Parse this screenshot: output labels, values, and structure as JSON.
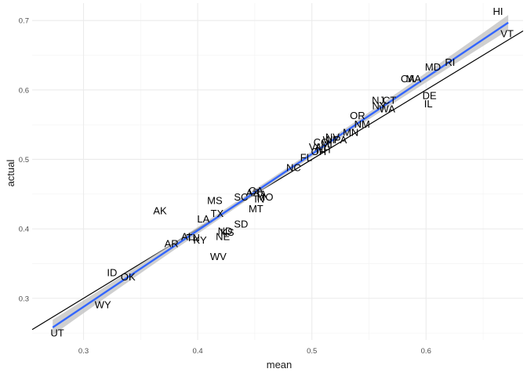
{
  "chart_data": {
    "type": "scatter",
    "title": "",
    "xlabel": "mean",
    "ylabel": "actual",
    "xlim": [
      0.255,
      0.685
    ],
    "ylim": [
      0.24,
      0.725
    ],
    "x_ticks": [
      {
        "value": 0.3,
        "label": "0.3"
      },
      {
        "value": 0.4,
        "label": "0.4"
      },
      {
        "value": 0.5,
        "label": "0.5"
      },
      {
        "value": 0.6,
        "label": "0.6"
      }
    ],
    "y_ticks": [
      {
        "value": 0.3,
        "label": "0.3"
      },
      {
        "value": 0.4,
        "label": "0.4"
      },
      {
        "value": 0.5,
        "label": "0.5"
      },
      {
        "value": 0.6,
        "label": "0.6"
      },
      {
        "value": 0.7,
        "label": "0.7"
      }
    ],
    "grid": true,
    "reference_line": {
      "type": "identity",
      "color": "#000000"
    },
    "fit_line": {
      "type": "linear",
      "color": "#3366FF",
      "band_color": "#bfbfbf",
      "start": [
        0.273,
        0.258
      ],
      "end": [
        0.672,
        0.697
      ],
      "band_halfwidth_ends": 0.011,
      "band_halfwidth_center": 0.004
    },
    "points": [
      {
        "label": "HI",
        "x": 0.663,
        "y": 0.713
      },
      {
        "label": "VT",
        "x": 0.671,
        "y": 0.681
      },
      {
        "label": "RI",
        "x": 0.621,
        "y": 0.64
      },
      {
        "label": "MD",
        "x": 0.606,
        "y": 0.633
      },
      {
        "label": "MA",
        "x": 0.589,
        "y": 0.616
      },
      {
        "label": "CA",
        "x": 0.584,
        "y": 0.616
      },
      {
        "label": "DE",
        "x": 0.603,
        "y": 0.592
      },
      {
        "label": "IL",
        "x": 0.602,
        "y": 0.58
      },
      {
        "label": "NJ",
        "x": 0.558,
        "y": 0.585
      },
      {
        "label": "CT",
        "x": 0.568,
        "y": 0.585
      },
      {
        "label": "NY",
        "x": 0.559,
        "y": 0.577
      },
      {
        "label": "WA",
        "x": 0.566,
        "y": 0.573
      },
      {
        "label": "OR",
        "x": 0.54,
        "y": 0.563
      },
      {
        "label": "NM",
        "x": 0.544,
        "y": 0.551
      },
      {
        "label": "MN",
        "x": 0.534,
        "y": 0.539
      },
      {
        "label": "PA",
        "x": 0.525,
        "y": 0.528
      },
      {
        "label": "NV",
        "x": 0.518,
        "y": 0.532
      },
      {
        "label": "WI",
        "x": 0.515,
        "y": 0.528
      },
      {
        "label": "CO",
        "x": 0.508,
        "y": 0.525
      },
      {
        "label": "MI",
        "x": 0.513,
        "y": 0.522
      },
      {
        "label": "NH",
        "x": 0.51,
        "y": 0.514
      },
      {
        "label": "VA",
        "x": 0.503,
        "y": 0.518
      },
      {
        "label": "OH",
        "x": 0.506,
        "y": 0.511
      },
      {
        "label": "FL",
        "x": 0.495,
        "y": 0.503
      },
      {
        "label": "NC",
        "x": 0.484,
        "y": 0.488
      },
      {
        "label": "GA",
        "x": 0.451,
        "y": 0.455
      },
      {
        "label": "MO",
        "x": 0.459,
        "y": 0.446
      },
      {
        "label": "IA",
        "x": 0.456,
        "y": 0.45
      },
      {
        "label": "SC",
        "x": 0.438,
        "y": 0.446
      },
      {
        "label": "IN",
        "x": 0.454,
        "y": 0.443
      },
      {
        "label": "MT",
        "x": 0.451,
        "y": 0.429
      },
      {
        "label": "AZ",
        "x": 0.448,
        "y": 0.452
      },
      {
        "label": "MS",
        "x": 0.415,
        "y": 0.441
      },
      {
        "label": "AK",
        "x": 0.367,
        "y": 0.426
      },
      {
        "label": "TX",
        "x": 0.417,
        "y": 0.422
      },
      {
        "label": "LA",
        "x": 0.405,
        "y": 0.414
      },
      {
        "label": "SD",
        "x": 0.438,
        "y": 0.407
      },
      {
        "label": "ND",
        "x": 0.424,
        "y": 0.397
      },
      {
        "label": "KS",
        "x": 0.426,
        "y": 0.395
      },
      {
        "label": "NE",
        "x": 0.422,
        "y": 0.389
      },
      {
        "label": "AL",
        "x": 0.391,
        "y": 0.389
      },
      {
        "label": "TN",
        "x": 0.396,
        "y": 0.387
      },
      {
        "label": "KY",
        "x": 0.402,
        "y": 0.384
      },
      {
        "label": "AR",
        "x": 0.377,
        "y": 0.379
      },
      {
        "label": "WV",
        "x": 0.418,
        "y": 0.36
      },
      {
        "label": "ID",
        "x": 0.325,
        "y": 0.337
      },
      {
        "label": "OK",
        "x": 0.339,
        "y": 0.331
      },
      {
        "label": "WY",
        "x": 0.317,
        "y": 0.291
      },
      {
        "label": "UT",
        "x": 0.277,
        "y": 0.25
      }
    ]
  }
}
